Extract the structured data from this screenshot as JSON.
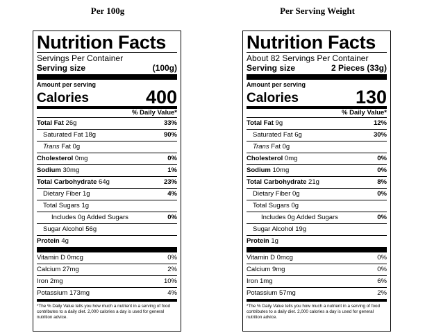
{
  "headings": {
    "left": "Per 100g",
    "right": "Per Serving Weight"
  },
  "labels": {
    "left": {
      "title": "Nutrition Facts",
      "servings_per_container": "Servings Per Container",
      "serving_size_label": "Serving size",
      "serving_size_value": "(100g)",
      "amount_per_serving": "Amount per serving",
      "calories_label": "Calories",
      "calories_value": "400",
      "daily_value_header": "% Daily Value*",
      "total_fat": {
        "label": "Total Fat",
        "amount": "26g",
        "dv": "33%"
      },
      "saturated_fat": {
        "label": "Saturated Fat 18g",
        "dv": "90%"
      },
      "trans_fat": {
        "label": "Trans",
        "amount": "Fat 0g"
      },
      "cholesterol": {
        "label": "Cholesterol",
        "amount": "0mg",
        "dv": "0%"
      },
      "sodium": {
        "label": "Sodium",
        "amount": "30mg",
        "dv": "1%"
      },
      "total_carb": {
        "label": "Total Carbohydrate",
        "amount": "64g",
        "dv": "23%"
      },
      "dietary_fiber": {
        "label": "Dietary Fiber 1g",
        "dv": "4%"
      },
      "total_sugars": {
        "label": "Total Sugars 1g"
      },
      "added_sugars": {
        "label": "Includes 0g Added Sugars",
        "dv": "0%"
      },
      "sugar_alcohol": {
        "label": "Sugar Alcohol 56g"
      },
      "protein": {
        "label": "Protein",
        "amount": "4g"
      },
      "vitamin_d": {
        "label": "Vitamin D 0mcg",
        "dv": "0%"
      },
      "calcium": {
        "label": "Calcium 27mg",
        "dv": "2%"
      },
      "iron": {
        "label": "Iron 2mg",
        "dv": "10%"
      },
      "potassium": {
        "label": "Potassium 173mg",
        "dv": "4%"
      },
      "footnote": "*The % Daily Value tells you how much a nutrient in a serving of food contributes to a daily diet. 2,000 calories a day is used for general nutrition advice."
    },
    "right": {
      "title": "Nutrition Facts",
      "servings_per_container": "About 82 Servings Per Container",
      "serving_size_label": "Serving size",
      "serving_size_value": "2 Pieces (33g)",
      "amount_per_serving": "Amount per serving",
      "calories_label": "Calories",
      "calories_value": "130",
      "daily_value_header": "% Daily Value*",
      "total_fat": {
        "label": "Total Fat",
        "amount": "9g",
        "dv": "12%"
      },
      "saturated_fat": {
        "label": "Saturated Fat 6g",
        "dv": "30%"
      },
      "trans_fat": {
        "label": "Trans",
        "amount": "Fat 0g"
      },
      "cholesterol": {
        "label": "Cholesterol",
        "amount": "0mg",
        "dv": "0%"
      },
      "sodium": {
        "label": "Sodium",
        "amount": "10mg",
        "dv": "0%"
      },
      "total_carb": {
        "label": "Total Carbohydrate",
        "amount": "21g",
        "dv": "8%"
      },
      "dietary_fiber": {
        "label": "Dietary Fiber 0g",
        "dv": "0%"
      },
      "total_sugars": {
        "label": "Total Sugars 0g"
      },
      "added_sugars": {
        "label": "Includes 0g Added Sugars",
        "dv": "0%"
      },
      "sugar_alcohol": {
        "label": "Sugar Alcohol 19g"
      },
      "protein": {
        "label": "Protein",
        "amount": "1g"
      },
      "vitamin_d": {
        "label": "Vitamin D 0mcg",
        "dv": "0%"
      },
      "calcium": {
        "label": "Calcium 9mg",
        "dv": "0%"
      },
      "iron": {
        "label": "Iron 1mg",
        "dv": "6%"
      },
      "potassium": {
        "label": "Potassium 57mg",
        "dv": "2%"
      },
      "footnote": "*The % Daily Value tells you how much a nutrient in a serving of food contributes to a daily diet. 2,000 calories a day is used for general nutrition advice."
    }
  }
}
